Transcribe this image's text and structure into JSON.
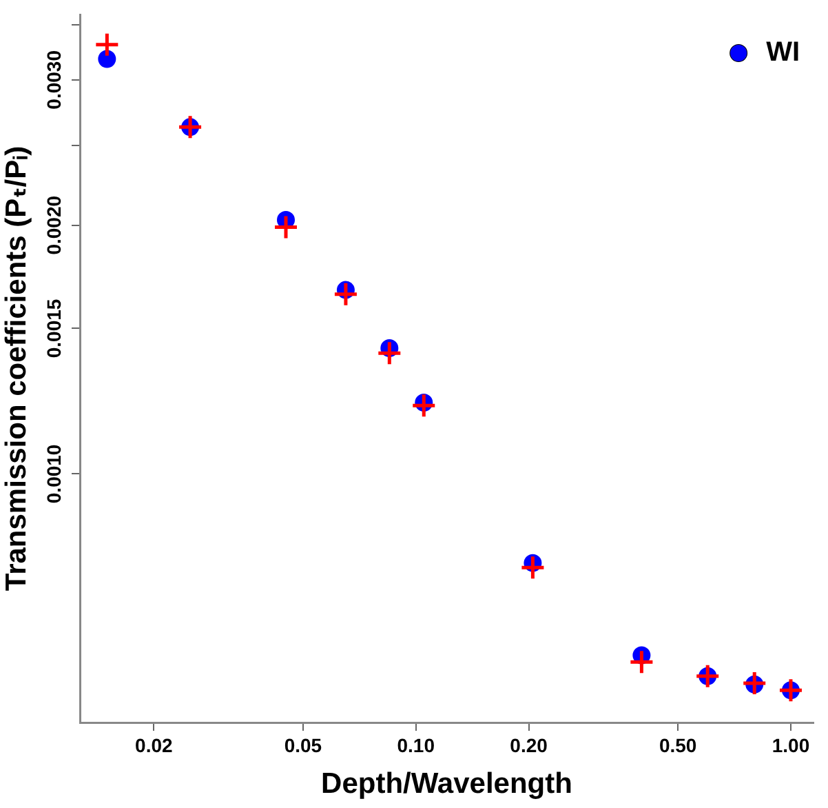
{
  "chart_data": {
    "type": "scatter",
    "xlabel": "Depth/Wavelength",
    "ylabel": "Transmission coefficients (Pₜ/Pᵢ)",
    "log": "xy",
    "xlim": [
      0.0127,
      1.15
    ],
    "ylim": [
      0.0005,
      0.0036
    ],
    "xticks": [
      0.02,
      0.05,
      {
        "value": 0.1,
        "label": "0.10"
      },
      {
        "value": 0.2,
        "label": "0.20"
      },
      {
        "value": 0.5,
        "label": "0.50"
      },
      {
        "value": 1,
        "label": "1.00"
      }
    ],
    "yticks": [
      {
        "value": 0.001,
        "label": "0.0010"
      },
      {
        "value": 0.0015,
        "label": "0.0015"
      },
      {
        "value": 0.002,
        "label": "0.0020"
      },
      {
        "value": 0.0025,
        "label": null
      },
      {
        "value": 0.003,
        "label": "0.0030"
      },
      {
        "value": 0.0035,
        "label": null
      }
    ],
    "x": [
      0.015,
      0.025,
      0.045,
      0.065,
      0.085,
      0.105,
      0.205,
      0.4,
      0.6,
      0.8,
      1.0
    ],
    "series": [
      {
        "color": "#ff0000",
        "marker": "cross",
        "values": [
          0.00331,
          0.00263,
          0.00199,
          0.00165,
          0.0014,
          0.00121,
          0.00077,
          0.000592,
          0.000569,
          0.000558,
          0.000547
        ]
      },
      {
        "name": "WI",
        "color": "#0000ff",
        "marker": "circle",
        "values": [
          0.00318,
          0.00263,
          0.00203,
          0.00167,
          0.00142,
          0.00122,
          0.00078,
          0.000603,
          0.000569,
          0.000556,
          0.000547
        ]
      }
    ],
    "grid": false,
    "legend": "top right"
  }
}
